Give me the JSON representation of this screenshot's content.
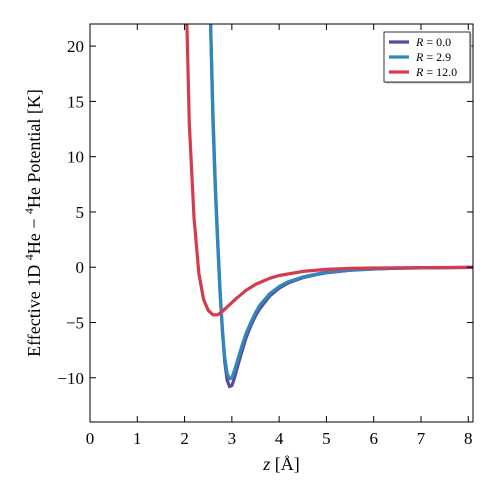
{
  "chart_data": {
    "type": "line",
    "title": "",
    "xlabel_var": "z",
    "xlabel_unit": " [Å]",
    "ylabel_pre": "Effective 1D ",
    "ylabel_sup1": "4",
    "ylabel_mid": "He − ",
    "ylabel_sup2": "4",
    "ylabel_post": "He Potential [K]",
    "xlim": [
      0,
      8.1
    ],
    "ylim": [
      -14,
      22
    ],
    "xticks": [
      0,
      1,
      2,
      3,
      4,
      5,
      6,
      7,
      8
    ],
    "yticks": [
      -10,
      -5,
      0,
      5,
      10,
      15,
      20
    ],
    "grid": false,
    "legend_position": "top-right",
    "series": [
      {
        "name": "R = 0.0",
        "legend_var": "R",
        "legend_val": " = 0.0",
        "color": "#5a4a9e",
        "x": [
          2.55,
          2.6,
          2.65,
          2.7,
          2.75,
          2.8,
          2.85,
          2.9,
          2.95,
          3.0,
          3.05,
          3.1,
          3.2,
          3.3,
          3.4,
          3.5,
          3.6,
          3.8,
          4.0,
          4.2,
          4.5,
          4.8,
          5.0,
          5.5,
          6.0,
          6.5,
          7.0,
          7.5,
          8.1
        ],
        "y": [
          22,
          14,
          7.5,
          2.5,
          -2.0,
          -5.8,
          -8.6,
          -10.2,
          -10.8,
          -10.7,
          -10.1,
          -9.3,
          -7.8,
          -6.4,
          -5.3,
          -4.4,
          -3.7,
          -2.6,
          -1.9,
          -1.4,
          -0.95,
          -0.65,
          -0.5,
          -0.28,
          -0.16,
          -0.1,
          -0.06,
          -0.04,
          -0.02
        ]
      },
      {
        "name": "R = 2.9",
        "legend_var": "R",
        "legend_val": " = 2.9",
        "color": "#2e87bd",
        "x": [
          2.55,
          2.6,
          2.65,
          2.7,
          2.75,
          2.8,
          2.85,
          2.9,
          2.95,
          3.0,
          3.05,
          3.1,
          3.2,
          3.3,
          3.4,
          3.5,
          3.6,
          3.8,
          4.0,
          4.2,
          4.5,
          4.8,
          5.0,
          5.5,
          6.0,
          6.5,
          7.0,
          7.5,
          8.1
        ],
        "y": [
          22,
          13.2,
          7.0,
          2.0,
          -2.2,
          -5.6,
          -8.2,
          -9.6,
          -10.1,
          -10.0,
          -9.4,
          -8.7,
          -7.3,
          -6.0,
          -5.0,
          -4.1,
          -3.4,
          -2.4,
          -1.75,
          -1.3,
          -0.88,
          -0.6,
          -0.46,
          -0.26,
          -0.15,
          -0.09,
          -0.06,
          -0.04,
          -0.02
        ]
      },
      {
        "name": "R = 12.0",
        "legend_var": "R",
        "legend_val": " = 12.0",
        "color": "#d63a4e",
        "x": [
          2.05,
          2.1,
          2.2,
          2.3,
          2.4,
          2.5,
          2.6,
          2.7,
          2.8,
          2.9,
          3.0,
          3.1,
          3.2,
          3.3,
          3.5,
          3.8,
          4.0,
          4.5,
          5.0,
          5.5,
          6.0,
          7.0,
          8.1
        ],
        "y": [
          22,
          13,
          4.5,
          -0.5,
          -2.9,
          -3.9,
          -4.3,
          -4.3,
          -4.0,
          -3.6,
          -3.2,
          -2.8,
          -2.45,
          -2.1,
          -1.55,
          -1.0,
          -0.75,
          -0.38,
          -0.2,
          -0.11,
          -0.07,
          -0.03,
          -0.01
        ]
      }
    ]
  }
}
